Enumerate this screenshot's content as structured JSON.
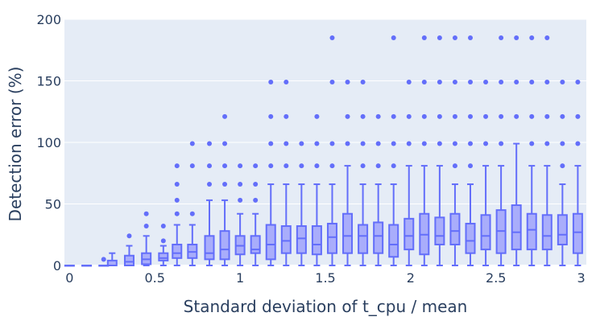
{
  "chart_data": {
    "type": "box",
    "xlabel": "Standard deviation of t_cpu / mean",
    "ylabel": "Detection error (%)",
    "xlim": [
      -0.03,
      3.03
    ],
    "ylim": [
      0,
      200
    ],
    "x_ticks": [
      0,
      0.5,
      1,
      1.5,
      2,
      2.5,
      3
    ],
    "x_tick_labels": [
      "0",
      "0.5",
      "1",
      "1.5",
      "2",
      "2.5",
      "3"
    ],
    "y_ticks": [
      0,
      50,
      100,
      150,
      200
    ],
    "y_tick_labels": [
      "0",
      "50",
      "100",
      "150",
      "200"
    ],
    "grid": true,
    "legend": "none",
    "colors": {
      "box": "#636efa",
      "box_fill": "#a9adfb",
      "plot_bg": "#e5ecf6",
      "text": "#2a3f5f"
    },
    "boxes": [
      {
        "x": 0.0,
        "q1": 0,
        "median": 0,
        "q3": 0,
        "low": 0,
        "high": 0,
        "outliers": []
      },
      {
        "x": 0.1,
        "q1": 0,
        "median": 0,
        "q3": 0,
        "low": 0,
        "high": 0,
        "outliers": []
      },
      {
        "x": 0.2,
        "q1": 0,
        "median": 0,
        "q3": 0,
        "low": 0,
        "high": 0,
        "outliers": [
          5
        ]
      },
      {
        "x": 0.25,
        "q1": 0,
        "median": 0,
        "q3": 4,
        "low": 0,
        "high": 10,
        "outliers": []
      },
      {
        "x": 0.35,
        "q1": 0,
        "median": 3,
        "q3": 8,
        "low": 0,
        "high": 16,
        "outliers": [
          24
        ]
      },
      {
        "x": 0.45,
        "q1": 1,
        "median": 5,
        "q3": 10,
        "low": 0,
        "high": 24,
        "outliers": [
          32,
          42
        ]
      },
      {
        "x": 0.55,
        "q1": 4,
        "median": 6,
        "q3": 10,
        "low": 0,
        "high": 16,
        "outliers": [
          20,
          32
        ]
      },
      {
        "x": 0.63,
        "q1": 6,
        "median": 10,
        "q3": 17,
        "low": 0,
        "high": 33,
        "outliers": [
          42,
          53,
          66,
          81
        ]
      },
      {
        "x": 0.72,
        "q1": 6,
        "median": 11,
        "q3": 17,
        "low": 0,
        "high": 33,
        "outliers": [
          42,
          81,
          99
        ]
      },
      {
        "x": 0.82,
        "q1": 5,
        "median": 10,
        "q3": 24,
        "low": 0,
        "high": 53,
        "outliers": [
          66,
          81,
          99
        ]
      },
      {
        "x": 0.91,
        "q1": 5,
        "median": 13,
        "q3": 28,
        "low": 0,
        "high": 53,
        "outliers": [
          66,
          81,
          99,
          121
        ]
      },
      {
        "x": 1.0,
        "q1": 9,
        "median": 16,
        "q3": 24,
        "low": 0,
        "high": 42,
        "outliers": [
          53,
          66,
          81
        ]
      },
      {
        "x": 1.09,
        "q1": 10,
        "median": 13,
        "q3": 24,
        "low": 0,
        "high": 42,
        "outliers": [
          53,
          66,
          81
        ]
      },
      {
        "x": 1.18,
        "q1": 5,
        "median": 17,
        "q3": 33,
        "low": 0,
        "high": 66,
        "outliers": [
          81,
          99,
          121,
          149
        ]
      },
      {
        "x": 1.27,
        "q1": 10,
        "median": 20,
        "q3": 32,
        "low": 0,
        "high": 66,
        "outliers": [
          81,
          99,
          121,
          149
        ]
      },
      {
        "x": 1.36,
        "q1": 10,
        "median": 22,
        "q3": 32,
        "low": 0,
        "high": 66,
        "outliers": [
          81,
          99
        ]
      },
      {
        "x": 1.45,
        "q1": 9,
        "median": 17,
        "q3": 32,
        "low": 0,
        "high": 66,
        "outliers": [
          81,
          99,
          121
        ]
      },
      {
        "x": 1.54,
        "q1": 10,
        "median": 23,
        "q3": 34,
        "low": 0,
        "high": 66,
        "outliers": [
          81,
          99,
          149,
          185
        ]
      },
      {
        "x": 1.63,
        "q1": 10,
        "median": 24,
        "q3": 42,
        "low": 0,
        "high": 81,
        "outliers": [
          99,
          121,
          149
        ]
      },
      {
        "x": 1.72,
        "q1": 10,
        "median": 24,
        "q3": 33,
        "low": 0,
        "high": 66,
        "outliers": [
          81,
          99,
          121,
          149
        ]
      },
      {
        "x": 1.81,
        "q1": 10,
        "median": 24,
        "q3": 35,
        "low": 0,
        "high": 66,
        "outliers": [
          81,
          99,
          121
        ]
      },
      {
        "x": 1.9,
        "q1": 7,
        "median": 17,
        "q3": 33,
        "low": 0,
        "high": 66,
        "outliers": [
          81,
          99,
          121,
          185
        ]
      },
      {
        "x": 1.99,
        "q1": 13,
        "median": 24,
        "q3": 38,
        "low": 0,
        "high": 81,
        "outliers": [
          99,
          121,
          149
        ]
      },
      {
        "x": 2.08,
        "q1": 9,
        "median": 25,
        "q3": 42,
        "low": 0,
        "high": 81,
        "outliers": [
          99,
          121,
          149,
          185
        ]
      },
      {
        "x": 2.17,
        "q1": 17,
        "median": 24,
        "q3": 39,
        "low": 0,
        "high": 81,
        "outliers": [
          99,
          121,
          149,
          185
        ]
      },
      {
        "x": 2.26,
        "q1": 17,
        "median": 28,
        "q3": 42,
        "low": 0,
        "high": 66,
        "outliers": [
          81,
          99,
          121,
          149,
          185
        ]
      },
      {
        "x": 2.35,
        "q1": 10,
        "median": 20,
        "q3": 34,
        "low": 0,
        "high": 66,
        "outliers": [
          81,
          99,
          121,
          149,
          185
        ]
      },
      {
        "x": 2.44,
        "q1": 13,
        "median": 24,
        "q3": 41,
        "low": 0,
        "high": 81,
        "outliers": [
          99,
          121,
          149
        ]
      },
      {
        "x": 2.53,
        "q1": 10,
        "median": 28,
        "q3": 45,
        "low": 0,
        "high": 81,
        "outliers": [
          99,
          121,
          149,
          185
        ]
      },
      {
        "x": 2.62,
        "q1": 13,
        "median": 27,
        "q3": 49,
        "low": 0,
        "high": 99,
        "outliers": [
          121,
          149,
          185
        ]
      },
      {
        "x": 2.71,
        "q1": 13,
        "median": 29,
        "q3": 42,
        "low": 0,
        "high": 81,
        "outliers": [
          99,
          121,
          149,
          185
        ]
      },
      {
        "x": 2.8,
        "q1": 13,
        "median": 24,
        "q3": 41,
        "low": 0,
        "high": 81,
        "outliers": [
          99,
          121,
          149,
          185
        ]
      },
      {
        "x": 2.89,
        "q1": 17,
        "median": 25,
        "q3": 41,
        "low": 0,
        "high": 66,
        "outliers": [
          81,
          99,
          121,
          149
        ]
      },
      {
        "x": 2.98,
        "q1": 10,
        "median": 27,
        "q3": 42,
        "low": 0,
        "high": 81,
        "outliers": [
          99,
          121,
          149
        ]
      }
    ]
  }
}
